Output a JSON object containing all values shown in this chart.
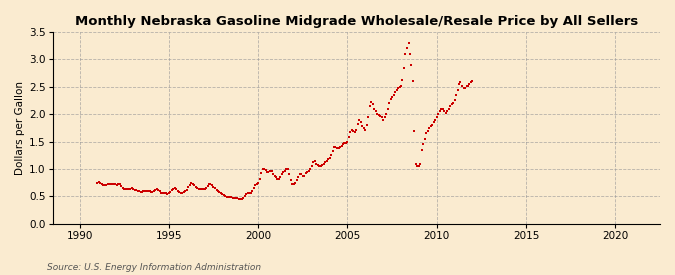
{
  "title": "Monthly Nebraska Gasoline Midgrade Wholesale/Resale Price by All Sellers",
  "ylabel": "Dollars per Gallon",
  "source": "Source: U.S. Energy Information Administration",
  "bg_color": "#faebd0",
  "plot_bg_color": "#faebd0",
  "dot_color": "#cc0000",
  "xlim": [
    1988.5,
    2022.5
  ],
  "ylim": [
    0.0,
    3.5
  ],
  "xticks": [
    1990,
    1995,
    2000,
    2005,
    2010,
    2015,
    2020
  ],
  "yticks": [
    0.0,
    0.5,
    1.0,
    1.5,
    2.0,
    2.5,
    3.0,
    3.5
  ],
  "data": [
    [
      1991.0,
      0.75
    ],
    [
      1991.08,
      0.76
    ],
    [
      1991.17,
      0.74
    ],
    [
      1991.25,
      0.72
    ],
    [
      1991.33,
      0.71
    ],
    [
      1991.42,
      0.7
    ],
    [
      1991.5,
      0.71
    ],
    [
      1991.58,
      0.72
    ],
    [
      1991.67,
      0.73
    ],
    [
      1991.75,
      0.73
    ],
    [
      1991.83,
      0.73
    ],
    [
      1991.92,
      0.72
    ],
    [
      1992.0,
      0.72
    ],
    [
      1992.08,
      0.71
    ],
    [
      1992.17,
      0.73
    ],
    [
      1992.25,
      0.72
    ],
    [
      1992.33,
      0.69
    ],
    [
      1992.42,
      0.66
    ],
    [
      1992.5,
      0.64
    ],
    [
      1992.58,
      0.63
    ],
    [
      1992.67,
      0.63
    ],
    [
      1992.75,
      0.64
    ],
    [
      1992.83,
      0.64
    ],
    [
      1992.92,
      0.65
    ],
    [
      1993.0,
      0.63
    ],
    [
      1993.08,
      0.62
    ],
    [
      1993.17,
      0.62
    ],
    [
      1993.25,
      0.6
    ],
    [
      1993.33,
      0.59
    ],
    [
      1993.42,
      0.58
    ],
    [
      1993.5,
      0.58
    ],
    [
      1993.58,
      0.59
    ],
    [
      1993.67,
      0.6
    ],
    [
      1993.75,
      0.6
    ],
    [
      1993.83,
      0.59
    ],
    [
      1993.92,
      0.59
    ],
    [
      1994.0,
      0.58
    ],
    [
      1994.08,
      0.58
    ],
    [
      1994.17,
      0.6
    ],
    [
      1994.25,
      0.62
    ],
    [
      1994.33,
      0.63
    ],
    [
      1994.42,
      0.62
    ],
    [
      1994.5,
      0.59
    ],
    [
      1994.58,
      0.57
    ],
    [
      1994.67,
      0.57
    ],
    [
      1994.75,
      0.57
    ],
    [
      1994.83,
      0.56
    ],
    [
      1994.92,
      0.55
    ],
    [
      1995.0,
      0.56
    ],
    [
      1995.08,
      0.58
    ],
    [
      1995.17,
      0.61
    ],
    [
      1995.25,
      0.64
    ],
    [
      1995.33,
      0.65
    ],
    [
      1995.42,
      0.63
    ],
    [
      1995.5,
      0.6
    ],
    [
      1995.58,
      0.58
    ],
    [
      1995.67,
      0.57
    ],
    [
      1995.75,
      0.57
    ],
    [
      1995.83,
      0.58
    ],
    [
      1995.92,
      0.59
    ],
    [
      1996.0,
      0.62
    ],
    [
      1996.08,
      0.67
    ],
    [
      1996.17,
      0.71
    ],
    [
      1996.25,
      0.74
    ],
    [
      1996.33,
      0.73
    ],
    [
      1996.42,
      0.71
    ],
    [
      1996.5,
      0.68
    ],
    [
      1996.58,
      0.65
    ],
    [
      1996.67,
      0.64
    ],
    [
      1996.75,
      0.63
    ],
    [
      1996.83,
      0.63
    ],
    [
      1996.92,
      0.64
    ],
    [
      1997.0,
      0.64
    ],
    [
      1997.08,
      0.66
    ],
    [
      1997.17,
      0.69
    ],
    [
      1997.25,
      0.72
    ],
    [
      1997.33,
      0.73
    ],
    [
      1997.42,
      0.71
    ],
    [
      1997.5,
      0.68
    ],
    [
      1997.58,
      0.65
    ],
    [
      1997.67,
      0.62
    ],
    [
      1997.75,
      0.6
    ],
    [
      1997.83,
      0.58
    ],
    [
      1997.92,
      0.57
    ],
    [
      1998.0,
      0.55
    ],
    [
      1998.08,
      0.52
    ],
    [
      1998.17,
      0.5
    ],
    [
      1998.25,
      0.49
    ],
    [
      1998.33,
      0.49
    ],
    [
      1998.42,
      0.49
    ],
    [
      1998.5,
      0.48
    ],
    [
      1998.58,
      0.47
    ],
    [
      1998.67,
      0.47
    ],
    [
      1998.75,
      0.47
    ],
    [
      1998.83,
      0.47
    ],
    [
      1998.92,
      0.46
    ],
    [
      1999.0,
      0.46
    ],
    [
      1999.08,
      0.46
    ],
    [
      1999.17,
      0.47
    ],
    [
      1999.25,
      0.5
    ],
    [
      1999.33,
      0.55
    ],
    [
      1999.42,
      0.56
    ],
    [
      1999.5,
      0.56
    ],
    [
      1999.58,
      0.57
    ],
    [
      1999.67,
      0.6
    ],
    [
      1999.75,
      0.65
    ],
    [
      1999.83,
      0.7
    ],
    [
      1999.92,
      0.72
    ],
    [
      2000.0,
      0.75
    ],
    [
      2000.08,
      0.82
    ],
    [
      2000.17,
      0.92
    ],
    [
      2000.25,
      1.0
    ],
    [
      2000.33,
      1.0
    ],
    [
      2000.42,
      0.98
    ],
    [
      2000.5,
      0.95
    ],
    [
      2000.58,
      0.94
    ],
    [
      2000.67,
      0.96
    ],
    [
      2000.75,
      0.96
    ],
    [
      2000.83,
      0.9
    ],
    [
      2000.92,
      0.88
    ],
    [
      2001.0,
      0.85
    ],
    [
      2001.08,
      0.82
    ],
    [
      2001.17,
      0.82
    ],
    [
      2001.25,
      0.85
    ],
    [
      2001.33,
      0.9
    ],
    [
      2001.42,
      0.95
    ],
    [
      2001.5,
      0.97
    ],
    [
      2001.58,
      1.0
    ],
    [
      2001.67,
      1.0
    ],
    [
      2001.75,
      0.9
    ],
    [
      2001.83,
      0.8
    ],
    [
      2001.92,
      0.72
    ],
    [
      2002.0,
      0.72
    ],
    [
      2002.08,
      0.75
    ],
    [
      2002.17,
      0.8
    ],
    [
      2002.25,
      0.85
    ],
    [
      2002.33,
      0.9
    ],
    [
      2002.42,
      0.9
    ],
    [
      2002.5,
      0.87
    ],
    [
      2002.58,
      0.88
    ],
    [
      2002.67,
      0.92
    ],
    [
      2002.75,
      0.95
    ],
    [
      2002.83,
      0.97
    ],
    [
      2002.92,
      1.0
    ],
    [
      2003.0,
      1.05
    ],
    [
      2003.08,
      1.12
    ],
    [
      2003.17,
      1.15
    ],
    [
      2003.25,
      1.1
    ],
    [
      2003.33,
      1.08
    ],
    [
      2003.42,
      1.05
    ],
    [
      2003.5,
      1.05
    ],
    [
      2003.58,
      1.08
    ],
    [
      2003.67,
      1.1
    ],
    [
      2003.75,
      1.12
    ],
    [
      2003.83,
      1.15
    ],
    [
      2003.92,
      1.18
    ],
    [
      2004.0,
      1.2
    ],
    [
      2004.08,
      1.25
    ],
    [
      2004.17,
      1.32
    ],
    [
      2004.25,
      1.4
    ],
    [
      2004.33,
      1.4
    ],
    [
      2004.42,
      1.38
    ],
    [
      2004.5,
      1.38
    ],
    [
      2004.58,
      1.4
    ],
    [
      2004.67,
      1.42
    ],
    [
      2004.75,
      1.45
    ],
    [
      2004.83,
      1.47
    ],
    [
      2004.92,
      1.48
    ],
    [
      2005.0,
      1.5
    ],
    [
      2005.08,
      1.58
    ],
    [
      2005.17,
      1.67
    ],
    [
      2005.25,
      1.72
    ],
    [
      2005.33,
      1.7
    ],
    [
      2005.42,
      1.68
    ],
    [
      2005.5,
      1.72
    ],
    [
      2005.58,
      1.82
    ],
    [
      2005.67,
      1.9
    ],
    [
      2005.75,
      1.85
    ],
    [
      2005.83,
      1.78
    ],
    [
      2005.92,
      1.75
    ],
    [
      2006.0,
      1.72
    ],
    [
      2006.08,
      1.8
    ],
    [
      2006.17,
      1.95
    ],
    [
      2006.25,
      2.15
    ],
    [
      2006.33,
      2.22
    ],
    [
      2006.42,
      2.18
    ],
    [
      2006.5,
      2.1
    ],
    [
      2006.58,
      2.05
    ],
    [
      2006.67,
      2.0
    ],
    [
      2006.75,
      1.98
    ],
    [
      2006.83,
      1.97
    ],
    [
      2006.92,
      1.95
    ],
    [
      2007.0,
      1.9
    ],
    [
      2007.08,
      1.95
    ],
    [
      2007.17,
      2.0
    ],
    [
      2007.25,
      2.1
    ],
    [
      2007.33,
      2.2
    ],
    [
      2007.42,
      2.28
    ],
    [
      2007.5,
      2.32
    ],
    [
      2007.58,
      2.35
    ],
    [
      2007.67,
      2.4
    ],
    [
      2007.75,
      2.45
    ],
    [
      2007.83,
      2.48
    ],
    [
      2007.92,
      2.5
    ],
    [
      2008.0,
      2.52
    ],
    [
      2008.08,
      2.62
    ],
    [
      2008.17,
      2.85
    ],
    [
      2008.25,
      3.1
    ],
    [
      2008.33,
      3.2
    ],
    [
      2008.42,
      3.3
    ],
    [
      2008.5,
      3.1
    ],
    [
      2008.58,
      2.9
    ],
    [
      2008.67,
      2.6
    ],
    [
      2008.75,
      1.7
    ],
    [
      2008.83,
      1.1
    ],
    [
      2008.92,
      1.05
    ],
    [
      2009.0,
      1.05
    ],
    [
      2009.08,
      1.1
    ],
    [
      2009.17,
      1.35
    ],
    [
      2009.25,
      1.45
    ],
    [
      2009.33,
      1.55
    ],
    [
      2009.42,
      1.65
    ],
    [
      2009.5,
      1.7
    ],
    [
      2009.58,
      1.75
    ],
    [
      2009.67,
      1.78
    ],
    [
      2009.75,
      1.8
    ],
    [
      2009.83,
      1.85
    ],
    [
      2009.92,
      1.9
    ],
    [
      2010.0,
      1.95
    ],
    [
      2010.08,
      2.0
    ],
    [
      2010.17,
      2.05
    ],
    [
      2010.25,
      2.1
    ],
    [
      2010.33,
      2.1
    ],
    [
      2010.42,
      2.05
    ],
    [
      2010.5,
      2.03
    ],
    [
      2010.58,
      2.05
    ],
    [
      2010.67,
      2.1
    ],
    [
      2010.75,
      2.15
    ],
    [
      2010.83,
      2.18
    ],
    [
      2010.92,
      2.2
    ],
    [
      2011.0,
      2.25
    ],
    [
      2011.08,
      2.35
    ],
    [
      2011.17,
      2.45
    ],
    [
      2011.25,
      2.55
    ],
    [
      2011.33,
      2.58
    ],
    [
      2011.42,
      2.52
    ],
    [
      2011.5,
      2.48
    ],
    [
      2011.58,
      2.48
    ],
    [
      2011.67,
      2.52
    ],
    [
      2011.75,
      2.52
    ],
    [
      2011.83,
      2.55
    ],
    [
      2011.92,
      2.58
    ],
    [
      2012.0,
      2.6
    ]
  ]
}
